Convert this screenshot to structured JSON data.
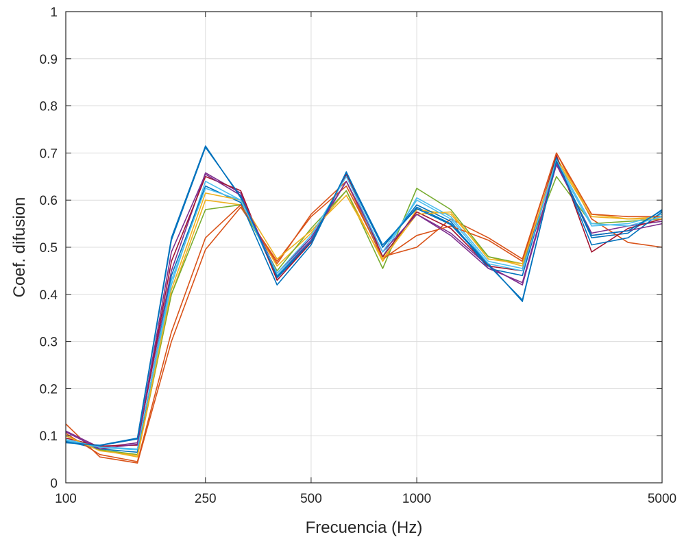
{
  "chart_data": {
    "type": "line",
    "xlabel": "Frecuencia (Hz)",
    "ylabel": "Coef. difusion",
    "x_scale": "log",
    "xlim": [
      100,
      5000
    ],
    "ylim": [
      0,
      1
    ],
    "grid": true,
    "x_ticks": [
      100,
      250,
      500,
      1000,
      5000
    ],
    "x_tick_labels": [
      "100",
      "250",
      "500",
      "1000",
      "5000"
    ],
    "y_ticks": [
      0,
      0.1,
      0.2,
      0.3,
      0.4,
      0.5,
      0.6,
      0.7,
      0.8,
      0.9,
      1
    ],
    "y_tick_labels": [
      "0",
      "0.1",
      "0.2",
      "0.3",
      "0.4",
      "0.5",
      "0.6",
      "0.7",
      "0.8",
      "0.9",
      "1"
    ],
    "x": [
      100,
      125,
      160,
      200,
      250,
      315,
      400,
      500,
      630,
      800,
      1000,
      1250,
      1600,
      2000,
      2500,
      3150,
      4000,
      5000
    ],
    "series": [
      {
        "color": "#0072BD",
        "values": [
          0.085,
          0.08,
          0.095,
          0.52,
          0.715,
          0.605,
          0.435,
          0.51,
          0.655,
          0.5,
          0.585,
          0.55,
          0.465,
          0.385,
          0.685,
          0.52,
          0.53,
          0.58
        ]
      },
      {
        "color": "#D95319",
        "values": [
          0.125,
          0.055,
          0.042,
          0.3,
          0.495,
          0.585,
          0.47,
          0.565,
          0.63,
          0.48,
          0.5,
          0.56,
          0.52,
          0.475,
          0.7,
          0.56,
          0.51,
          0.5
        ]
      },
      {
        "color": "#EDB120",
        "values": [
          0.1,
          0.07,
          0.055,
          0.4,
          0.6,
          0.59,
          0.46,
          0.53,
          0.62,
          0.47,
          0.58,
          0.57,
          0.48,
          0.46,
          0.69,
          0.57,
          0.56,
          0.565
        ]
      },
      {
        "color": "#7E2F8E",
        "values": [
          0.11,
          0.075,
          0.085,
          0.45,
          0.658,
          0.615,
          0.44,
          0.515,
          0.64,
          0.49,
          0.57,
          0.53,
          0.46,
          0.42,
          0.675,
          0.53,
          0.545,
          0.555
        ]
      },
      {
        "color": "#77AC30",
        "values": [
          0.1,
          0.07,
          0.06,
          0.4,
          0.58,
          0.59,
          0.45,
          0.54,
          0.62,
          0.455,
          0.625,
          0.58,
          0.48,
          0.465,
          0.65,
          0.55,
          0.555,
          0.56
        ]
      },
      {
        "color": "#4DBEEE",
        "values": [
          0.09,
          0.075,
          0.07,
          0.42,
          0.64,
          0.6,
          0.44,
          0.52,
          0.64,
          0.48,
          0.605,
          0.565,
          0.47,
          0.455,
          0.68,
          0.545,
          0.55,
          0.57
        ]
      },
      {
        "color": "#A2142F",
        "values": [
          0.095,
          0.078,
          0.08,
          0.47,
          0.65,
          0.62,
          0.43,
          0.51,
          0.655,
          0.48,
          0.575,
          0.54,
          0.46,
          0.45,
          0.695,
          0.49,
          0.54,
          0.56
        ]
      },
      {
        "color": "#0072BD",
        "values": [
          0.088,
          0.072,
          0.065,
          0.44,
          0.63,
          0.595,
          0.42,
          0.505,
          0.66,
          0.5,
          0.59,
          0.555,
          0.455,
          0.44,
          0.69,
          0.505,
          0.52,
          0.575
        ]
      },
      {
        "color": "#D95319",
        "values": [
          0.105,
          0.06,
          0.045,
          0.32,
          0.52,
          0.59,
          0.465,
          0.57,
          0.64,
          0.475,
          0.525,
          0.545,
          0.515,
          0.47,
          0.7,
          0.57,
          0.565,
          0.565
        ]
      },
      {
        "color": "#EDB120",
        "values": [
          0.1,
          0.068,
          0.058,
          0.41,
          0.615,
          0.6,
          0.475,
          0.535,
          0.61,
          0.475,
          0.57,
          0.575,
          0.475,
          0.465,
          0.685,
          0.565,
          0.56,
          0.56
        ]
      },
      {
        "color": "#7E2F8E",
        "values": [
          0.108,
          0.072,
          0.082,
          0.49,
          0.655,
          0.61,
          0.445,
          0.52,
          0.64,
          0.49,
          0.57,
          0.525,
          0.455,
          0.425,
          0.68,
          0.525,
          0.535,
          0.55
        ]
      },
      {
        "color": "#4DBEEE",
        "values": [
          0.092,
          0.076,
          0.072,
          0.43,
          0.625,
          0.6,
          0.445,
          0.525,
          0.65,
          0.49,
          0.6,
          0.56,
          0.465,
          0.45,
          0.685,
          0.55,
          0.545,
          0.565
        ]
      },
      {
        "color": "#0072BD",
        "values": [
          0.086,
          0.079,
          0.093,
          0.515,
          0.712,
          0.608,
          0.438,
          0.512,
          0.658,
          0.505,
          0.582,
          0.548,
          0.462,
          0.388,
          0.683,
          0.525,
          0.535,
          0.578
        ]
      }
    ]
  }
}
